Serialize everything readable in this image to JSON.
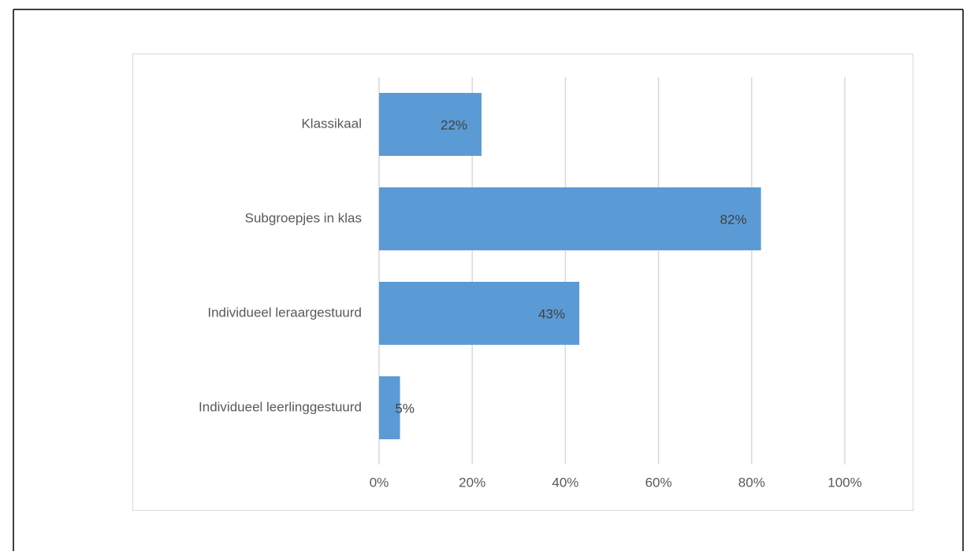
{
  "chart_data": {
    "type": "bar",
    "orientation": "horizontal",
    "categories": [
      "Klassikaal",
      "Subgroepjes in klas",
      "Individueel leraargestuurd",
      "Individueel leerlinggestuurd"
    ],
    "values": [
      22,
      82,
      43,
      4.5
    ],
    "value_labels": [
      "22%",
      "82%",
      "43%",
      "5%"
    ],
    "color": "#5b9bd5",
    "xlim": [
      0,
      100
    ],
    "xticks": [
      {
        "value": 0,
        "label": "0%"
      },
      {
        "value": 20,
        "label": "20%"
      },
      {
        "value": 40,
        "label": "40%"
      },
      {
        "value": 60,
        "label": "60%"
      },
      {
        "value": 80,
        "label": "80%"
      },
      {
        "value": 100,
        "label": "100%"
      }
    ],
    "grid": true
  }
}
